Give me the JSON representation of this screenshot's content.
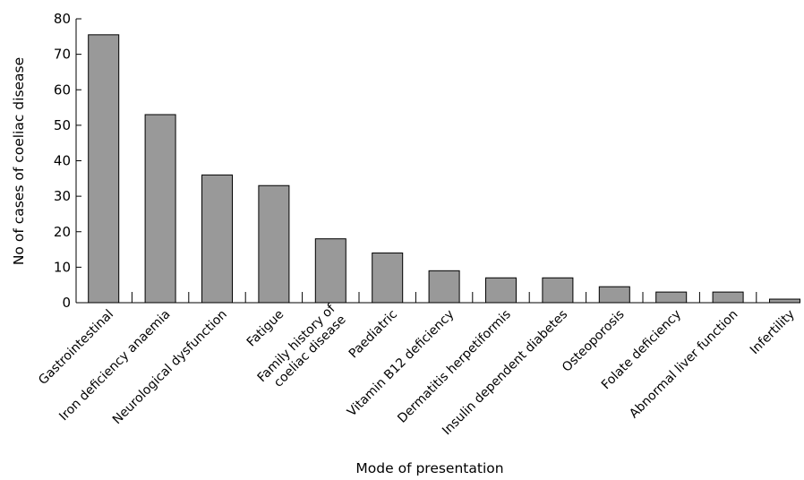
{
  "chart_data": {
    "type": "bar",
    "title": "",
    "xlabel": "Mode of presentation",
    "ylabel": "No of cases of coeliac disease",
    "ylim": [
      0,
      80
    ],
    "yticks": [
      0,
      10,
      20,
      30,
      40,
      50,
      60,
      70,
      80
    ],
    "grid": false,
    "legend": "none",
    "bar_color": "#999999",
    "categories": [
      [
        "Gastrointestinal"
      ],
      [
        "Iron deficiency anaemia"
      ],
      [
        "Neurological dysfunction"
      ],
      [
        "Fatigue"
      ],
      [
        "Family history of",
        "coeliac disease"
      ],
      [
        "Paediatric"
      ],
      [
        "Vitamin B12 deficiency"
      ],
      [
        "Dermatitis herpetiformis"
      ],
      [
        "Insulin dependent diabetes"
      ],
      [
        "Osteoporosis"
      ],
      [
        "Folate deficiency"
      ],
      [
        "Abnormal liver function"
      ],
      [
        "Infertility"
      ]
    ],
    "values": [
      75.5,
      53,
      36,
      33,
      18,
      14,
      9,
      7,
      7,
      4.5,
      3,
      3,
      1
    ]
  }
}
